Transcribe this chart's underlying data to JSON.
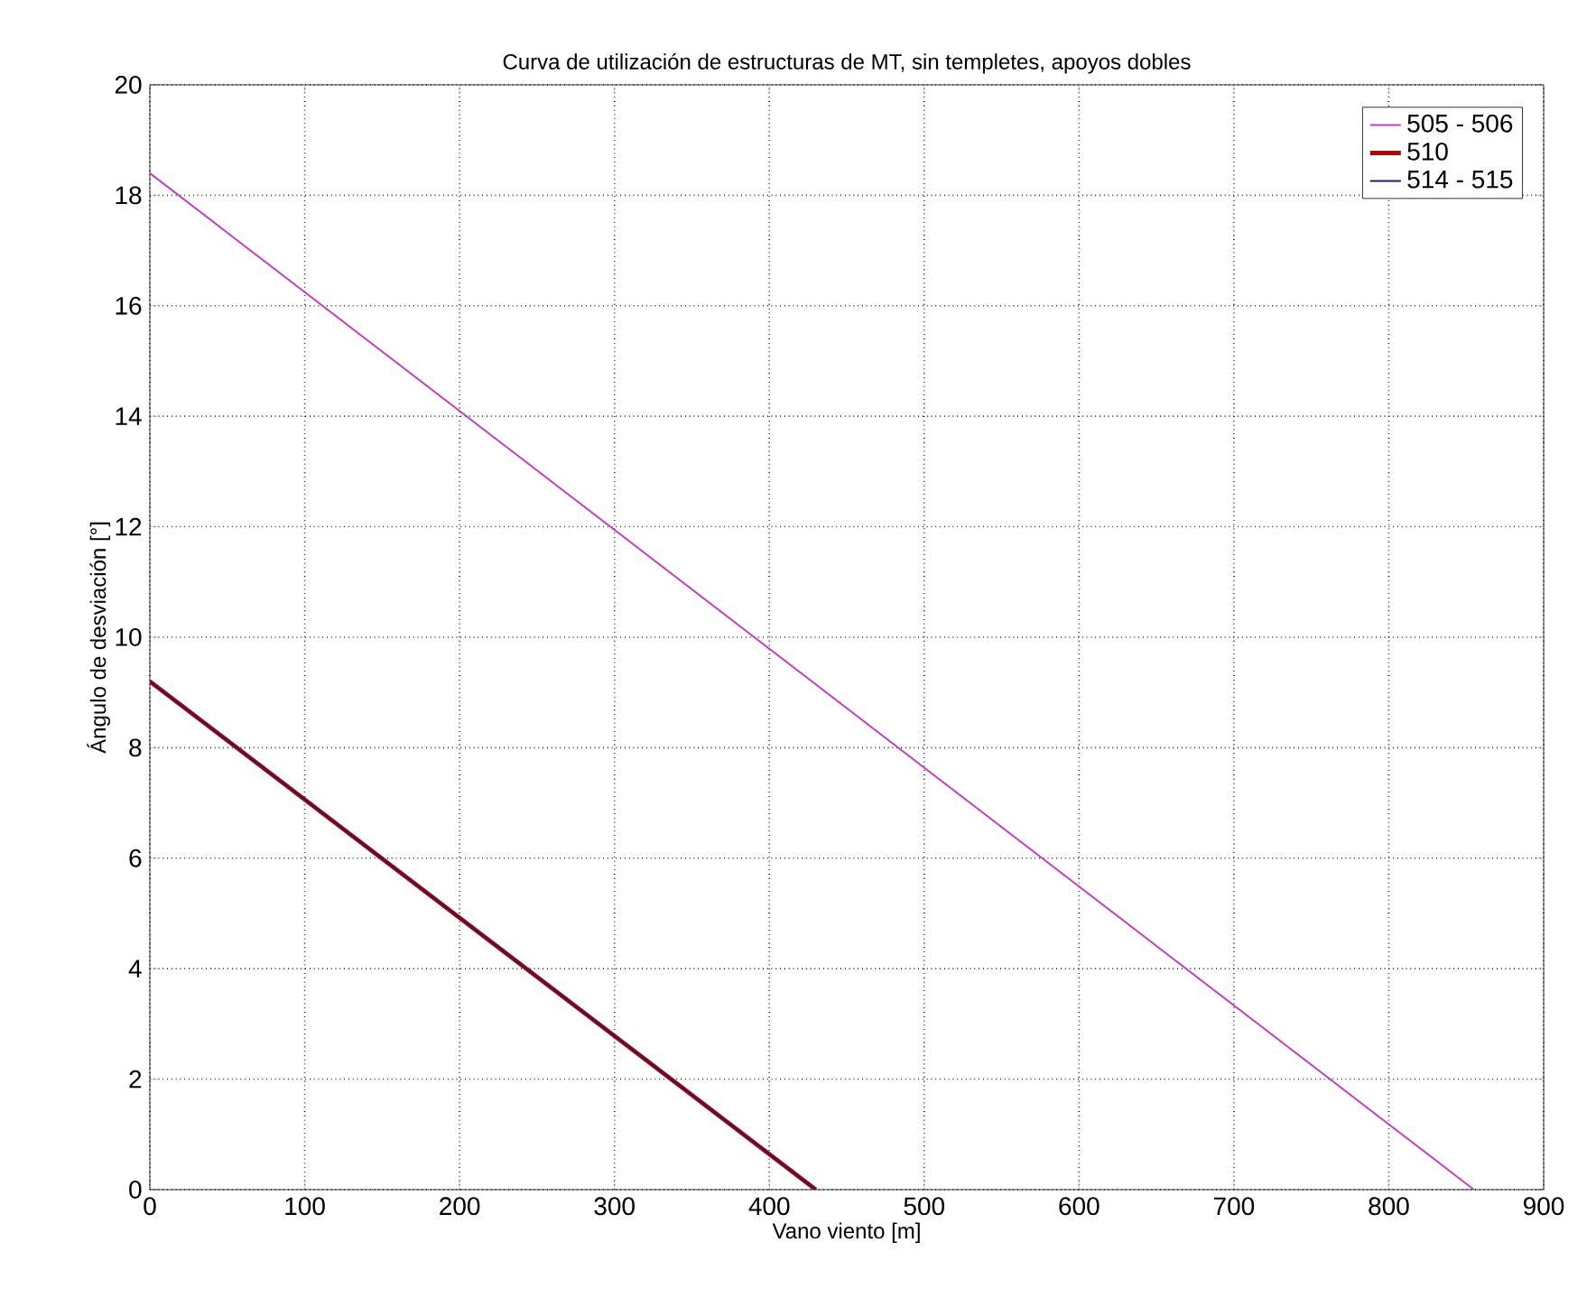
{
  "chart_data": {
    "type": "line",
    "title": "Curva de utilización de estructuras de MT, sin templetes, apoyos dobles",
    "xlabel": "Vano viento [m]",
    "ylabel": "Ángulo de desviación [°]",
    "xlim": [
      0,
      900
    ],
    "ylim": [
      0,
      20
    ],
    "xticks": [
      0,
      100,
      200,
      300,
      400,
      500,
      600,
      700,
      800,
      900
    ],
    "yticks": [
      0,
      2,
      4,
      6,
      8,
      10,
      12,
      14,
      16,
      18,
      20
    ],
    "grid": true,
    "legend": "top right",
    "marker": "none",
    "line_style": "solid",
    "series": [
      {
        "name": "505 - 506",
        "color": "#c040c0",
        "x": [
          0,
          855
        ],
        "values": [
          18.4,
          0
        ]
      },
      {
        "name": "510",
        "color": "#c00000",
        "x": [
          0,
          430
        ],
        "values": [
          9.2,
          0
        ]
      },
      {
        "name": "514 - 515",
        "color": "#20205a",
        "x": [
          0,
          430
        ],
        "values": [
          9.2,
          0
        ]
      }
    ]
  }
}
